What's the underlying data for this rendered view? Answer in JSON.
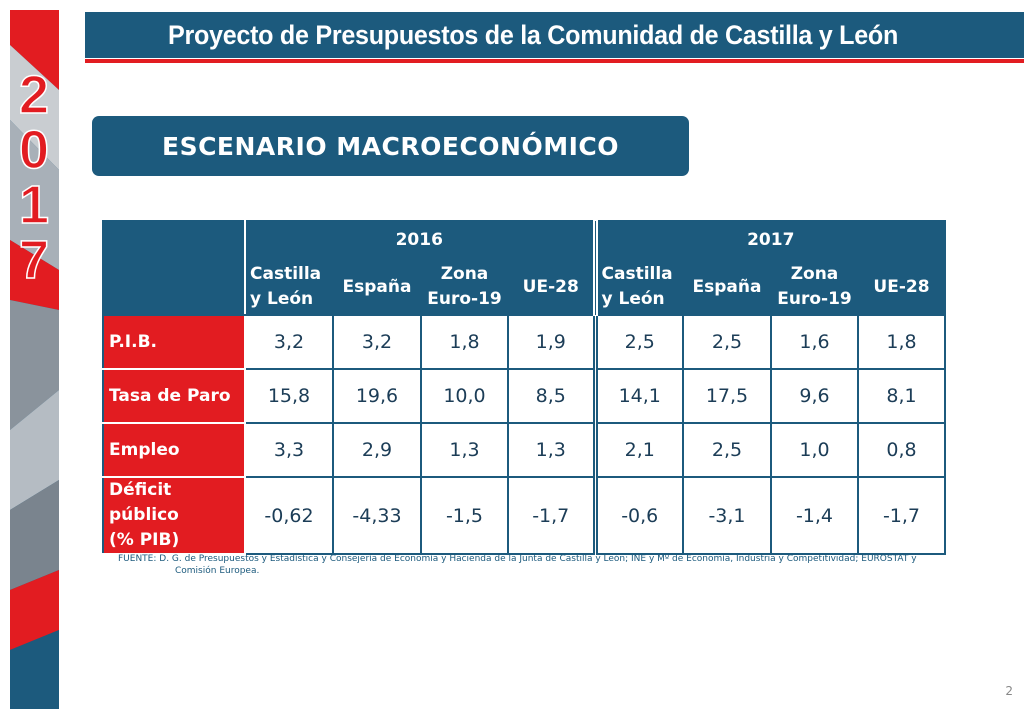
{
  "header": {
    "title": "Proyecto de Presupuestos de la Comunidad de Castilla y León"
  },
  "sidebar": {
    "year_digits": [
      "2",
      "0",
      "1",
      "7"
    ]
  },
  "section": {
    "title": "ESCENARIO MACROECONÓMICO"
  },
  "table": {
    "years": [
      "2016",
      "2017"
    ],
    "regions": [
      [
        "Castilla",
        "y León"
      ],
      [
        "España"
      ],
      [
        "Zona",
        "Euro-19"
      ],
      [
        "UE-28"
      ]
    ],
    "rows": [
      {
        "label": [
          "P.I.B."
        ],
        "values": [
          "3,2",
          "3,2",
          "1,8",
          "1,9",
          "2,5",
          "2,5",
          "1,6",
          "1,8"
        ]
      },
      {
        "label": [
          "Tasa de Paro"
        ],
        "values": [
          "15,8",
          "19,6",
          "10,0",
          "8,5",
          "14,1",
          "17,5",
          "9,6",
          "8,1"
        ]
      },
      {
        "label": [
          "Empleo"
        ],
        "values": [
          "3,3",
          "2,9",
          "1,3",
          "1,3",
          "2,1",
          "2,5",
          "1,0",
          "0,8"
        ]
      },
      {
        "label": [
          "Déficit público",
          "(% PIB)"
        ],
        "values": [
          "-0,62",
          "-4,33",
          "-1,5",
          "-1,7",
          "-0,6",
          "-3,1",
          "-1,4",
          "-1,7"
        ]
      }
    ]
  },
  "source": {
    "line1": "FUENTE: D. G. de Presupuestos y Estadística y Consejería de Economía y Hacienda de la Junta de Castilla y León; INE y Mº de Economía, Industria y Competitividad; EUROSTAT y",
    "line2": "Comisión Europea."
  },
  "page_number": "2",
  "colors": {
    "primary": "#1c5a7d",
    "accent": "#e21c21"
  }
}
